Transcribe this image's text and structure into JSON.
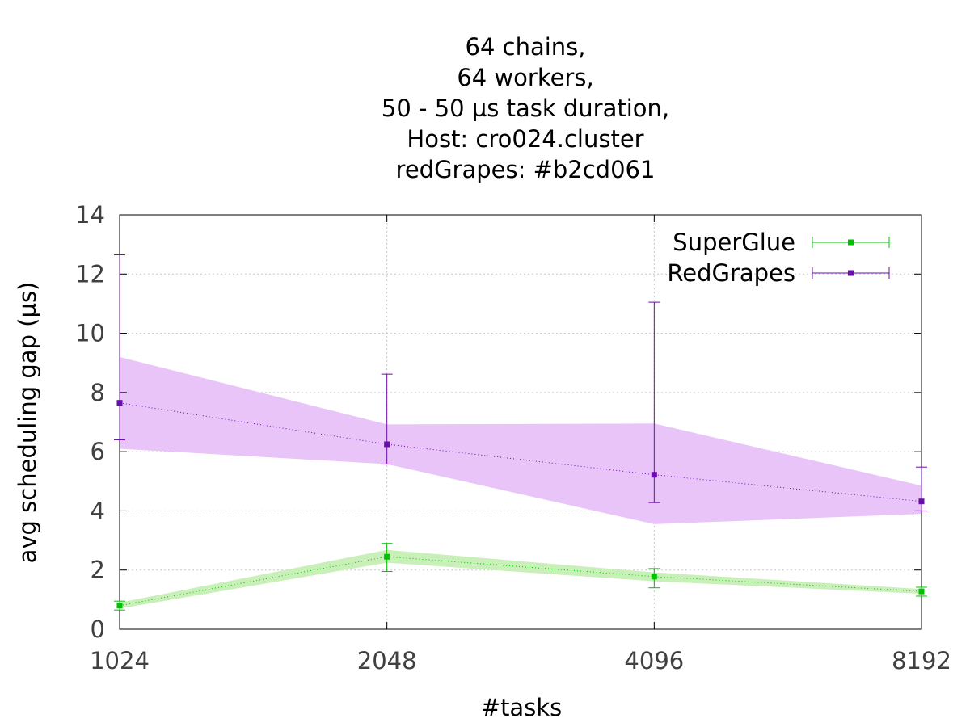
{
  "chart_data": {
    "type": "line",
    "title_lines": [
      "64 chains,",
      "64 workers,",
      "50 - 50 µs task duration,",
      "Host: cro024.cluster",
      "redGrapes: #b2cd061"
    ],
    "xlabel": "#tasks",
    "ylabel": "avg scheduling gap (µs)",
    "x_scale": "log2",
    "x": [
      1024,
      2048,
      4096,
      8192
    ],
    "x_tick_labels": [
      "1024",
      "2048",
      "4096",
      "8192"
    ],
    "ylim": [
      0,
      14
    ],
    "y_ticks": [
      0,
      2,
      4,
      6,
      8,
      10,
      12,
      14
    ],
    "grid": true,
    "legend_position": "top-right",
    "series": [
      {
        "name": "SuperGlue",
        "color": "#00c000",
        "band_color": "#c8f0b8",
        "values": [
          0.8,
          2.45,
          1.78,
          1.28
        ],
        "error_low": [
          0.65,
          1.95,
          1.4,
          1.12
        ],
        "error_high": [
          0.95,
          2.9,
          2.05,
          1.42
        ],
        "band_low": [
          0.7,
          2.25,
          1.62,
          1.2
        ],
        "band_high": [
          0.9,
          2.68,
          1.92,
          1.36
        ]
      },
      {
        "name": "RedGrapes",
        "color": "#6a0dad",
        "band_color": "#e8c4f8",
        "values": [
          7.65,
          6.25,
          5.22,
          4.32
        ],
        "error_low": [
          6.4,
          5.58,
          4.28,
          4.0
        ],
        "error_high": [
          12.65,
          8.62,
          11.05,
          5.48
        ],
        "band_low": [
          6.1,
          5.58,
          3.55,
          3.9
        ],
        "band_high": [
          9.2,
          6.92,
          6.95,
          4.85
        ]
      }
    ]
  }
}
